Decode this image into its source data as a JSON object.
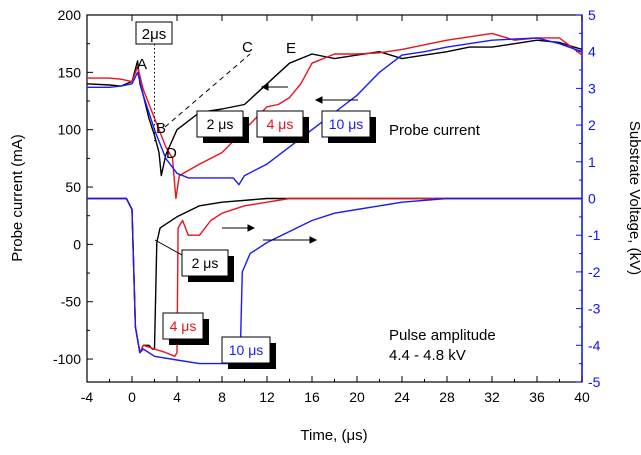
{
  "chart_data": {
    "type": "line",
    "xlabel": "Time, (μs)",
    "ylabel_left": "Probe current (mA)",
    "ylabel_right": "Substrate Voltage, (kV)",
    "xlim": [
      -4,
      40
    ],
    "ylim_left": [
      -120,
      200
    ],
    "ylim_right": [
      -5,
      5
    ],
    "x_ticks": [
      -4,
      0,
      4,
      8,
      12,
      16,
      20,
      24,
      28,
      32,
      36,
      40
    ],
    "y_ticks_left": [
      -100,
      -50,
      0,
      50,
      100,
      150,
      200
    ],
    "y_ticks_right": [
      -5,
      -4,
      -3,
      -2,
      -1,
      0,
      1,
      2,
      3,
      4,
      5
    ],
    "grid": false,
    "colors": {
      "black": "#000000",
      "red": "#e8141c",
      "blue": "#1a1aff",
      "right_axis": "#1010ff"
    },
    "series": [
      {
        "name": "2 μs",
        "color": "#000000",
        "current": [
          [
            -4,
            140
          ],
          [
            -2,
            139
          ],
          [
            -1,
            138
          ],
          [
            0,
            142
          ],
          [
            0.5,
            160
          ],
          [
            0.7,
            140
          ],
          [
            1,
            130
          ],
          [
            1.5,
            110
          ],
          [
            2,
            95
          ],
          [
            2.4,
            80
          ],
          [
            2.6,
            60
          ],
          [
            3,
            78
          ],
          [
            4,
            100
          ],
          [
            6,
            115
          ],
          [
            8,
            118
          ],
          [
            10,
            122
          ],
          [
            12,
            140
          ],
          [
            14,
            158
          ],
          [
            16,
            166
          ],
          [
            18,
            162
          ],
          [
            20,
            165
          ],
          [
            22,
            168
          ],
          [
            24,
            162
          ],
          [
            26,
            165
          ],
          [
            28,
            168
          ],
          [
            30,
            172
          ],
          [
            32,
            172
          ],
          [
            34,
            175
          ],
          [
            36,
            178
          ],
          [
            38,
            176
          ],
          [
            40,
            170
          ]
        ],
        "voltage": [
          [
            -4,
            0
          ],
          [
            -0.5,
            0
          ],
          [
            0,
            -0.3
          ],
          [
            0.3,
            -3.5
          ],
          [
            0.7,
            -4.2
          ],
          [
            1,
            -4.0
          ],
          [
            1.5,
            -4.0
          ],
          [
            1.8,
            -4.1
          ],
          [
            2.0,
            -4.1
          ],
          [
            2.2,
            -1.2
          ],
          [
            2.5,
            -0.8
          ],
          [
            3,
            -0.7
          ],
          [
            4,
            -0.5
          ],
          [
            6,
            -0.2
          ],
          [
            8,
            -0.1
          ],
          [
            12,
            0
          ],
          [
            40,
            0
          ]
        ]
      },
      {
        "name": "4 μs",
        "color": "#e8141c",
        "current": [
          [
            -4,
            145
          ],
          [
            -2,
            145
          ],
          [
            -1,
            144
          ],
          [
            0,
            142
          ],
          [
            0.5,
            155
          ],
          [
            1,
            135
          ],
          [
            2,
            110
          ],
          [
            3,
            85
          ],
          [
            3.6,
            75
          ],
          [
            3.9,
            40
          ],
          [
            4.2,
            60
          ],
          [
            6,
            70
          ],
          [
            8,
            80
          ],
          [
            10,
            100
          ],
          [
            12,
            120
          ],
          [
            13,
            122
          ],
          [
            14,
            128
          ],
          [
            15,
            140
          ],
          [
            16,
            158
          ],
          [
            18,
            166
          ],
          [
            20,
            166
          ],
          [
            22,
            167
          ],
          [
            24,
            170
          ],
          [
            28,
            178
          ],
          [
            32,
            184
          ],
          [
            34,
            178
          ],
          [
            36,
            180
          ],
          [
            38,
            180
          ],
          [
            40,
            165
          ]
        ],
        "voltage": [
          [
            -4,
            0
          ],
          [
            -0.5,
            0
          ],
          [
            0,
            -0.3
          ],
          [
            0.3,
            -3.5
          ],
          [
            0.7,
            -4.2
          ],
          [
            1,
            -4.0
          ],
          [
            2,
            -4.1
          ],
          [
            3,
            -4.2
          ],
          [
            3.8,
            -4.3
          ],
          [
            4.0,
            -4.2
          ],
          [
            4.1,
            -0.8
          ],
          [
            4.5,
            -0.6
          ],
          [
            5,
            -1.0
          ],
          [
            6,
            -1.0
          ],
          [
            7,
            -0.6
          ],
          [
            8,
            -0.4
          ],
          [
            10,
            -0.2
          ],
          [
            12,
            -0.1
          ],
          [
            14,
            0
          ],
          [
            40,
            0
          ]
        ]
      },
      {
        "name": "10 μs",
        "color": "#1a1aff",
        "current": [
          [
            -4,
            137
          ],
          [
            -2,
            137
          ],
          [
            -1,
            138
          ],
          [
            0,
            140
          ],
          [
            0.5,
            150
          ],
          [
            1,
            130
          ],
          [
            2,
            100
          ],
          [
            3,
            75
          ],
          [
            4,
            62
          ],
          [
            5,
            58
          ],
          [
            7,
            58
          ],
          [
            9,
            58
          ],
          [
            9.5,
            52
          ],
          [
            10,
            60
          ],
          [
            12,
            70
          ],
          [
            14,
            85
          ],
          [
            16,
            100
          ],
          [
            18,
            115
          ],
          [
            20,
            130
          ],
          [
            22,
            150
          ],
          [
            24,
            165
          ],
          [
            26,
            168
          ],
          [
            28,
            172
          ],
          [
            32,
            178
          ],
          [
            36,
            180
          ],
          [
            38,
            175
          ],
          [
            40,
            168
          ]
        ],
        "voltage": [
          [
            -4,
            0
          ],
          [
            -0.5,
            0
          ],
          [
            0,
            -0.3
          ],
          [
            0.3,
            -3.5
          ],
          [
            0.7,
            -4.2
          ],
          [
            1,
            -4.1
          ],
          [
            2,
            -4.3
          ],
          [
            4,
            -4.4
          ],
          [
            6,
            -4.5
          ],
          [
            8,
            -4.5
          ],
          [
            9.6,
            -4.5
          ],
          [
            9.8,
            -2.0
          ],
          [
            10.5,
            -1.5
          ],
          [
            12,
            -1.2
          ],
          [
            14,
            -0.9
          ],
          [
            16,
            -0.6
          ],
          [
            18,
            -0.4
          ],
          [
            20,
            -0.3
          ],
          [
            24,
            -0.1
          ],
          [
            28,
            0
          ],
          [
            40,
            0
          ]
        ]
      }
    ],
    "annotations": {
      "marker_2us": "2μs",
      "point_A": "A",
      "point_B": "B",
      "point_C": "C",
      "point_D": "D",
      "point_E": "E",
      "probe_current_label": "Probe current",
      "box_2us_top": "2 μs",
      "box_4us_top": "4 μs",
      "box_10us_top": "10 μs",
      "box_2us_bottom": "2 μs",
      "box_4us_bottom": "4 μs",
      "box_10us_bottom": "10 μs",
      "pulse_line1": "Pulse amplitude",
      "pulse_line2": "4.4 - 4.8 kV"
    }
  }
}
